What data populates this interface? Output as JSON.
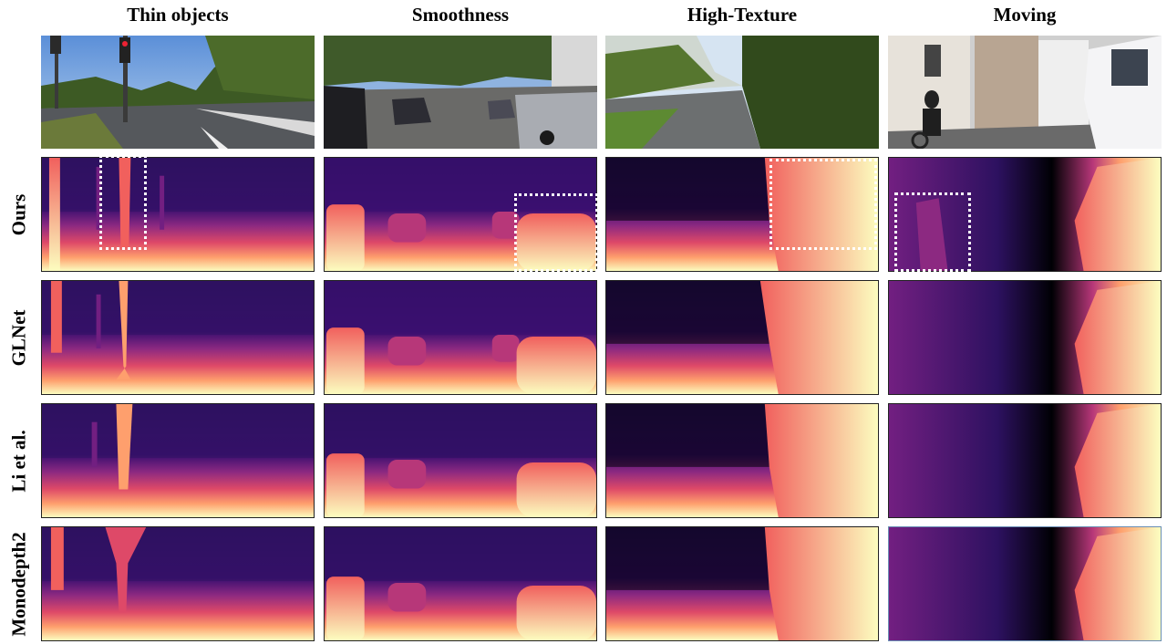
{
  "figure": {
    "columns": [
      "Thin objects",
      "Smoothness",
      "High-Texture",
      "Moving"
    ],
    "rows": [
      "Ours",
      "GLNet",
      "Li et al.",
      "Monodepth2"
    ],
    "colormap": [
      "#000004",
      "#2d1160",
      "#721f81",
      "#b73779",
      "#f1605d",
      "#feb078",
      "#fcfdbf"
    ]
  }
}
